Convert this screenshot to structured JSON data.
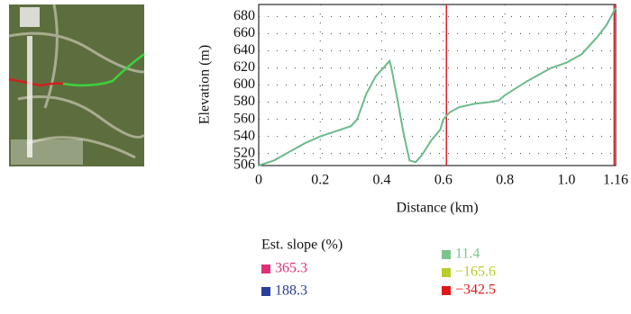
{
  "chart_data": {
    "type": "line",
    "x_label": "Distance (km)",
    "y_label": "Elevation (m)",
    "x": [
      0,
      0.05,
      0.1,
      0.15,
      0.2,
      0.25,
      0.3,
      0.32,
      0.35,
      0.38,
      0.41,
      0.425,
      0.43,
      0.45,
      0.47,
      0.49,
      0.51,
      0.53,
      0.56,
      0.59,
      0.6,
      0.62,
      0.65,
      0.7,
      0.75,
      0.78,
      0.8,
      0.83,
      0.87,
      0.9,
      0.95,
      1.0,
      1.05,
      1.1,
      1.13,
      1.16
    ],
    "series": [
      {
        "color": "#6cba8c",
        "values": [
          506,
          512,
          522,
          532,
          540,
          546,
          552,
          560,
          590,
          610,
          622,
          628,
          622,
          585,
          545,
          512,
          510,
          518,
          535,
          548,
          560,
          568,
          574,
          578,
          580,
          582,
          588,
          595,
          604,
          610,
          620,
          626,
          636,
          656,
          670,
          690
        ]
      }
    ],
    "xlim": [
      0,
      1.16
    ],
    "ylim": [
      506,
      694
    ],
    "xticks": [
      0,
      0.2,
      0.4,
      0.6,
      0.8,
      {
        "value": 1,
        "label": "1.0"
      },
      1.16
    ],
    "yticks": [
      506,
      520,
      540,
      560,
      580,
      600,
      620,
      640,
      660,
      680
    ],
    "grid": true,
    "vlines": {
      "color": "#e0202a",
      "values": [
        0.61,
        1.155
      ]
    },
    "legend": {
      "title": "Est. slope (%)",
      "items": [
        {
          "label": "365.3",
          "color": "#e0307a"
        },
        {
          "label": "188.3",
          "color": "#2a3f9a"
        },
        {
          "label": "11.4",
          "color": "#7cc48e"
        },
        {
          "label": "−165.6",
          "color": "#b8cc2a"
        },
        {
          "label": "−342.5",
          "color": "#e01818"
        }
      ]
    }
  }
}
